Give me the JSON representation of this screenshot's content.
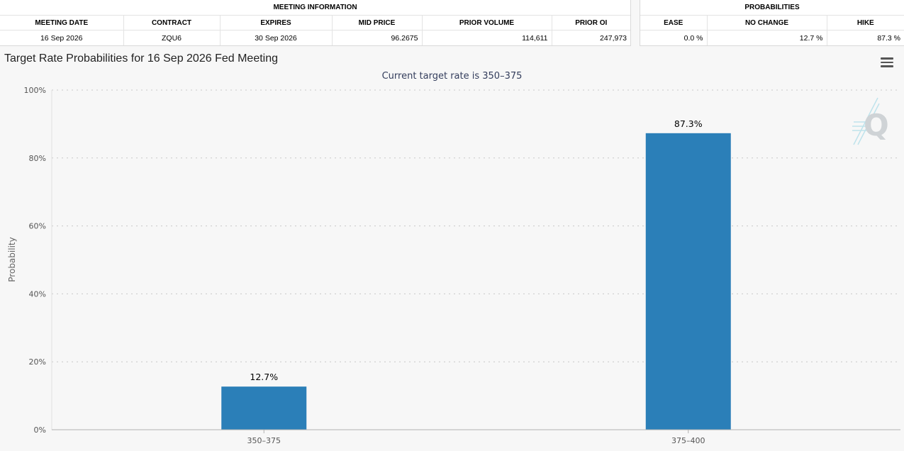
{
  "meeting_info": {
    "group_label": "MEETING INFORMATION",
    "columns": [
      "MEETING DATE",
      "CONTRACT",
      "EXPIRES",
      "MID PRICE",
      "PRIOR VOLUME",
      "PRIOR OI"
    ],
    "row": {
      "meeting_date": "16 Sep 2026",
      "contract": "ZQU6",
      "expires": "30 Sep 2026",
      "mid_price": "96.2675",
      "prior_volume": "114,611",
      "prior_oi": "247,973"
    }
  },
  "probabilities": {
    "group_label": "PROBABILITIES",
    "columns": [
      "EASE",
      "NO CHANGE",
      "HIKE"
    ],
    "row": {
      "ease": "0.0 %",
      "no_change": "12.7 %",
      "hike": "87.3 %"
    }
  },
  "chart_data": {
    "type": "bar",
    "title": "Target Rate Probabilities for 16 Sep 2026 Fed Meeting",
    "subtitle": "Current target rate is 350–375",
    "xlabel": "",
    "ylabel": "Probability",
    "categories": [
      "350–375",
      "375–400"
    ],
    "values": [
      12.7,
      87.3
    ],
    "data_labels": [
      "12.7%",
      "87.3%"
    ],
    "ylim": [
      0,
      100
    ],
    "yticks": [
      0,
      20,
      40,
      60,
      80,
      100
    ],
    "ytick_labels": [
      "0%",
      "20%",
      "40%",
      "60%",
      "80%",
      "100%"
    ],
    "bar_color": "#2b7fb8",
    "grid": true,
    "legend": "none"
  }
}
